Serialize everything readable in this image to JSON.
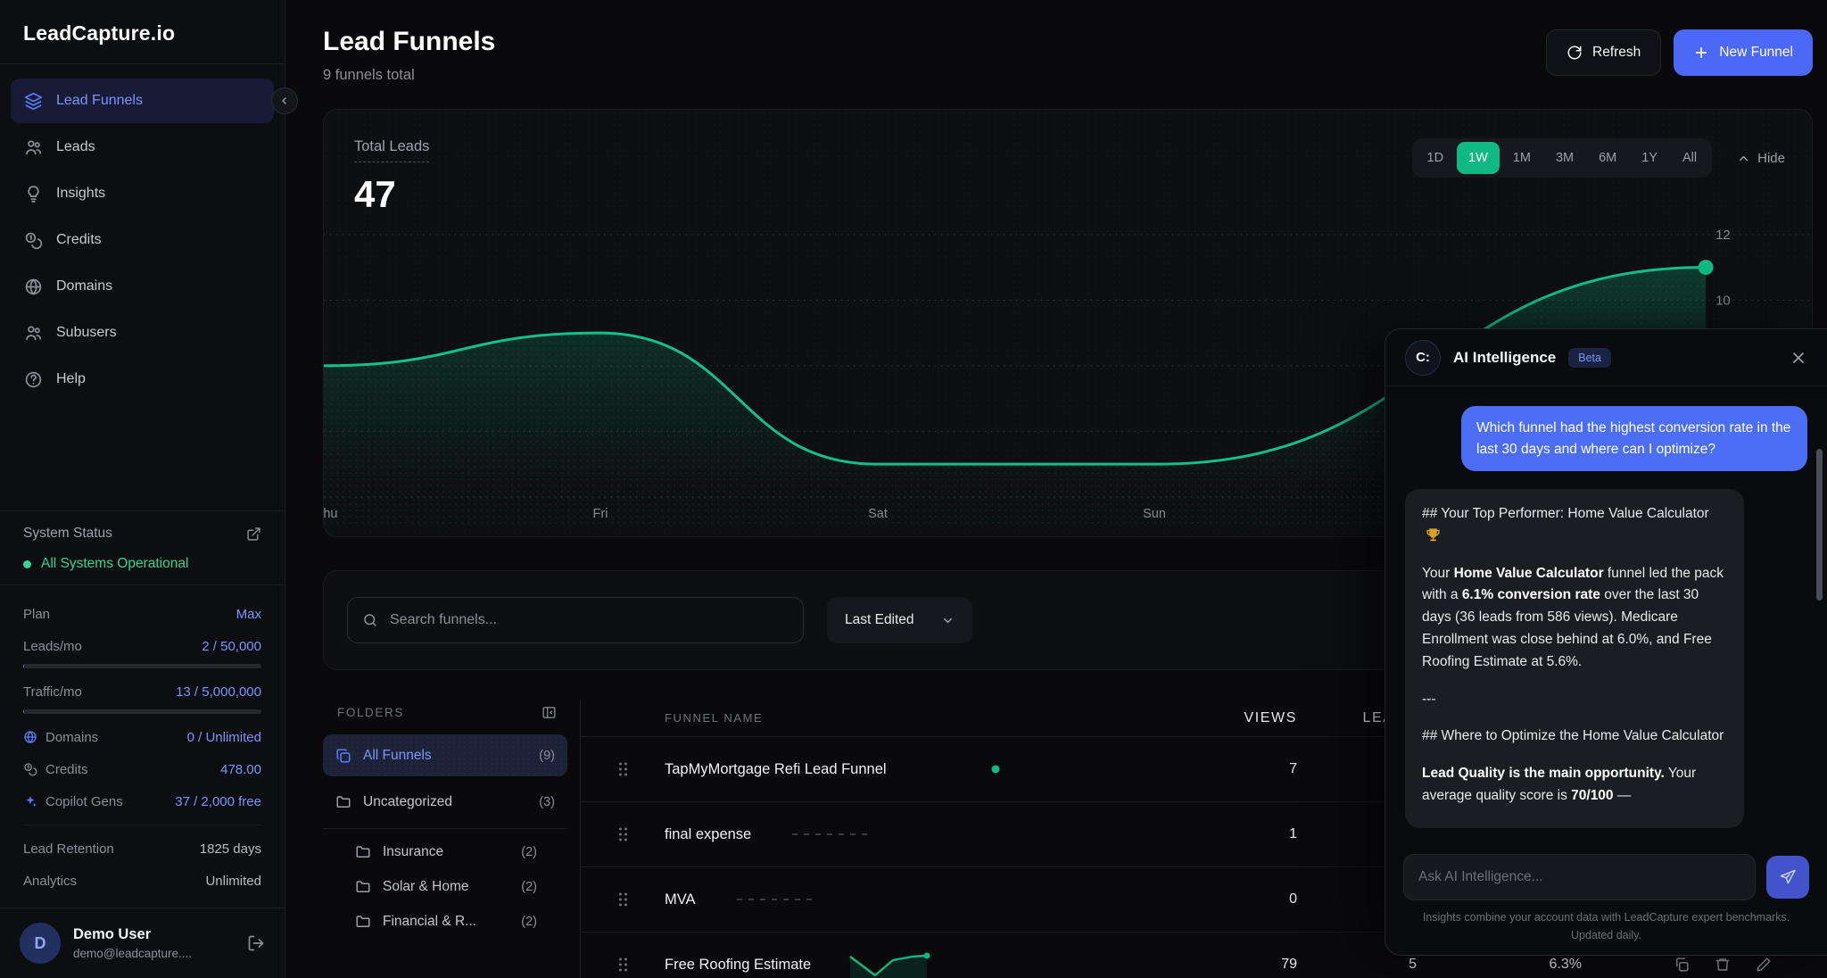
{
  "app": {
    "logo": "LeadCapture.io"
  },
  "sidebar": {
    "nav": [
      {
        "label": "Lead Funnels"
      },
      {
        "label": "Leads"
      },
      {
        "label": "Insights"
      },
      {
        "label": "Credits"
      },
      {
        "label": "Domains"
      },
      {
        "label": "Subusers"
      },
      {
        "label": "Help"
      }
    ],
    "status": {
      "title": "System Status",
      "value": "All Systems Operational"
    },
    "plan_rows": [
      {
        "label": "Plan",
        "value": "Max"
      },
      {
        "label": "Leads/mo",
        "value": "2 / 50,000"
      },
      {
        "label": "Traffic/mo",
        "value": "13 / 5,000,000"
      },
      {
        "label": "Domains",
        "value": "0 / Unlimited"
      },
      {
        "label": "Credits",
        "value": "478.00"
      },
      {
        "label": "Copilot Gens",
        "value": "37 / 2,000 free"
      },
      {
        "label": "Lead Retention",
        "value": "1825 days"
      },
      {
        "label": "Analytics",
        "value": "Unlimited"
      }
    ],
    "user": {
      "initial": "D",
      "name": "Demo User",
      "email": "demo@leadcapture...."
    }
  },
  "header": {
    "title": "Lead Funnels",
    "subtitle": "9 funnels total",
    "refresh_label": "Refresh",
    "new_funnel_label": "New Funnel"
  },
  "chart": {
    "metric_label": "Total Leads",
    "metric_value": "47",
    "ranges": [
      "1D",
      "1W",
      "1M",
      "3M",
      "6M",
      "1Y",
      "All"
    ],
    "active_range": "1W",
    "hide_label": "Hide"
  },
  "chart_data": {
    "type": "area",
    "title": "Total Leads",
    "total_value": 47,
    "x_labels": [
      "Thu",
      "Fri",
      "Sat",
      "Sun"
    ],
    "values": [
      8,
      9,
      5,
      5,
      11
    ],
    "yticks": [
      12,
      10,
      8,
      6,
      4
    ],
    "yticks_labeled": [
      12,
      10
    ],
    "ylim": [
      3,
      13
    ],
    "line_color": "#10b981",
    "grid": "dashed",
    "legend": "none"
  },
  "search": {
    "placeholder": "Search funnels...",
    "sort_label": "Last Edited"
  },
  "folders": {
    "title": "FOLDERS",
    "items": [
      {
        "label": "All Funnels",
        "count": "(9)"
      },
      {
        "label": "Uncategorized",
        "count": "(3)"
      },
      {
        "label": "Insurance",
        "count": "(2)"
      },
      {
        "label": "Solar & Home",
        "count": "(2)"
      },
      {
        "label": "Financial & R...",
        "count": "(2)"
      }
    ]
  },
  "table": {
    "columns": {
      "name": "FUNNEL NAME",
      "views": "VIEWS",
      "leads": "LEADS",
      "conv": ""
    },
    "rows": [
      {
        "name": "TapMyMortgage Refi Lead Funnel",
        "views": "7",
        "leads": "",
        "conv": ""
      },
      {
        "name": "final expense",
        "views": "1",
        "leads": "",
        "conv": ""
      },
      {
        "name": "MVA",
        "views": "0",
        "leads": "",
        "conv": ""
      },
      {
        "name": "Free Roofing Estimate",
        "views": "79",
        "leads": "5",
        "conv": "6.3%"
      }
    ]
  },
  "ai": {
    "title": "AI Intelligence",
    "badge": "Beta",
    "logo_glyph": "C:",
    "user_message": "Which funnel had the highest conversion rate in the last 30 days and where can I optimize?",
    "assistant": {
      "a1": "## Your Top Performer: Home Value Calculator",
      "a2_1": "Your ",
      "a2_b1": "Home Value Calculator",
      "a2_2": " funnel led the pack with a ",
      "a2_b2": "6.1% conversion rate",
      "a2_3": " over the last 30 days (36 leads from 586 views). Medicare Enrollment was close behind at 6.0%, and Free Roofing Estimate at 5.6%.",
      "a3": "---",
      "a4": "## Where to Optimize the Home Value Calculator",
      "a5_b1": "Lead Quality is the main opportunity.",
      "a5_2": " Your average quality score is ",
      "a5_b2": "70/100",
      "a5_3": " —"
    },
    "input_placeholder": "Ask AI Intelligence...",
    "footer": "Insights combine your account data with LeadCapture expert benchmarks. Updated daily.",
    "colors": {
      "accent_blue": "#4c6ef5",
      "accent_green": "#10b981"
    }
  }
}
